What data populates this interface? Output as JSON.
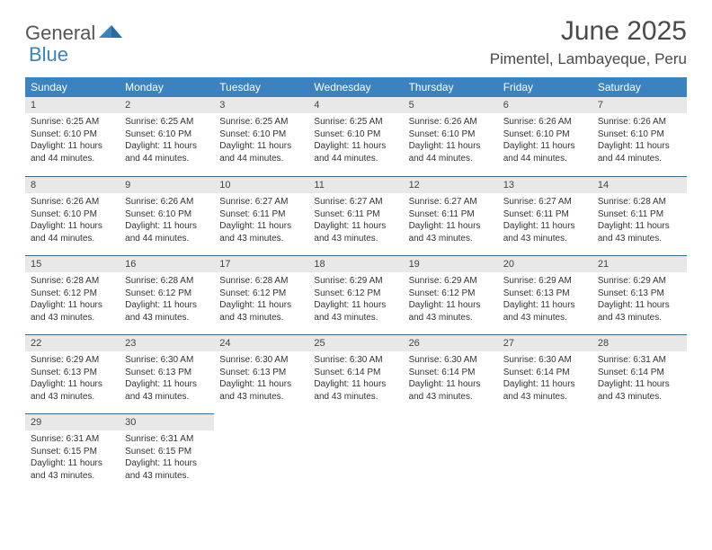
{
  "brand": {
    "name_a": "General",
    "name_b": "Blue"
  },
  "colors": {
    "header_bg": "#3b83c0",
    "header_text": "#ffffff",
    "daynum_bg": "#e8e8e8",
    "body_text": "#333333",
    "divider": "#3b6a9a",
    "page_bg": "#ffffff"
  },
  "title": "June 2025",
  "location": "Pimentel, Lambayeque, Peru",
  "weekdays": [
    "Sunday",
    "Monday",
    "Tuesday",
    "Wednesday",
    "Thursday",
    "Friday",
    "Saturday"
  ],
  "font": {
    "title_size": 30,
    "location_size": 17,
    "header_size": 12,
    "daynum_size": 11,
    "body_size": 10
  },
  "weeks": [
    [
      {
        "n": "1",
        "sr": "Sunrise: 6:25 AM",
        "ss": "Sunset: 6:10 PM",
        "d1": "Daylight: 11 hours",
        "d2": "and 44 minutes."
      },
      {
        "n": "2",
        "sr": "Sunrise: 6:25 AM",
        "ss": "Sunset: 6:10 PM",
        "d1": "Daylight: 11 hours",
        "d2": "and 44 minutes."
      },
      {
        "n": "3",
        "sr": "Sunrise: 6:25 AM",
        "ss": "Sunset: 6:10 PM",
        "d1": "Daylight: 11 hours",
        "d2": "and 44 minutes."
      },
      {
        "n": "4",
        "sr": "Sunrise: 6:25 AM",
        "ss": "Sunset: 6:10 PM",
        "d1": "Daylight: 11 hours",
        "d2": "and 44 minutes."
      },
      {
        "n": "5",
        "sr": "Sunrise: 6:26 AM",
        "ss": "Sunset: 6:10 PM",
        "d1": "Daylight: 11 hours",
        "d2": "and 44 minutes."
      },
      {
        "n": "6",
        "sr": "Sunrise: 6:26 AM",
        "ss": "Sunset: 6:10 PM",
        "d1": "Daylight: 11 hours",
        "d2": "and 44 minutes."
      },
      {
        "n": "7",
        "sr": "Sunrise: 6:26 AM",
        "ss": "Sunset: 6:10 PM",
        "d1": "Daylight: 11 hours",
        "d2": "and 44 minutes."
      }
    ],
    [
      {
        "n": "8",
        "sr": "Sunrise: 6:26 AM",
        "ss": "Sunset: 6:10 PM",
        "d1": "Daylight: 11 hours",
        "d2": "and 44 minutes."
      },
      {
        "n": "9",
        "sr": "Sunrise: 6:26 AM",
        "ss": "Sunset: 6:10 PM",
        "d1": "Daylight: 11 hours",
        "d2": "and 44 minutes."
      },
      {
        "n": "10",
        "sr": "Sunrise: 6:27 AM",
        "ss": "Sunset: 6:11 PM",
        "d1": "Daylight: 11 hours",
        "d2": "and 43 minutes."
      },
      {
        "n": "11",
        "sr": "Sunrise: 6:27 AM",
        "ss": "Sunset: 6:11 PM",
        "d1": "Daylight: 11 hours",
        "d2": "and 43 minutes."
      },
      {
        "n": "12",
        "sr": "Sunrise: 6:27 AM",
        "ss": "Sunset: 6:11 PM",
        "d1": "Daylight: 11 hours",
        "d2": "and 43 minutes."
      },
      {
        "n": "13",
        "sr": "Sunrise: 6:27 AM",
        "ss": "Sunset: 6:11 PM",
        "d1": "Daylight: 11 hours",
        "d2": "and 43 minutes."
      },
      {
        "n": "14",
        "sr": "Sunrise: 6:28 AM",
        "ss": "Sunset: 6:11 PM",
        "d1": "Daylight: 11 hours",
        "d2": "and 43 minutes."
      }
    ],
    [
      {
        "n": "15",
        "sr": "Sunrise: 6:28 AM",
        "ss": "Sunset: 6:12 PM",
        "d1": "Daylight: 11 hours",
        "d2": "and 43 minutes."
      },
      {
        "n": "16",
        "sr": "Sunrise: 6:28 AM",
        "ss": "Sunset: 6:12 PM",
        "d1": "Daylight: 11 hours",
        "d2": "and 43 minutes."
      },
      {
        "n": "17",
        "sr": "Sunrise: 6:28 AM",
        "ss": "Sunset: 6:12 PM",
        "d1": "Daylight: 11 hours",
        "d2": "and 43 minutes."
      },
      {
        "n": "18",
        "sr": "Sunrise: 6:29 AM",
        "ss": "Sunset: 6:12 PM",
        "d1": "Daylight: 11 hours",
        "d2": "and 43 minutes."
      },
      {
        "n": "19",
        "sr": "Sunrise: 6:29 AM",
        "ss": "Sunset: 6:12 PM",
        "d1": "Daylight: 11 hours",
        "d2": "and 43 minutes."
      },
      {
        "n": "20",
        "sr": "Sunrise: 6:29 AM",
        "ss": "Sunset: 6:13 PM",
        "d1": "Daylight: 11 hours",
        "d2": "and 43 minutes."
      },
      {
        "n": "21",
        "sr": "Sunrise: 6:29 AM",
        "ss": "Sunset: 6:13 PM",
        "d1": "Daylight: 11 hours",
        "d2": "and 43 minutes."
      }
    ],
    [
      {
        "n": "22",
        "sr": "Sunrise: 6:29 AM",
        "ss": "Sunset: 6:13 PM",
        "d1": "Daylight: 11 hours",
        "d2": "and 43 minutes."
      },
      {
        "n": "23",
        "sr": "Sunrise: 6:30 AM",
        "ss": "Sunset: 6:13 PM",
        "d1": "Daylight: 11 hours",
        "d2": "and 43 minutes."
      },
      {
        "n": "24",
        "sr": "Sunrise: 6:30 AM",
        "ss": "Sunset: 6:13 PM",
        "d1": "Daylight: 11 hours",
        "d2": "and 43 minutes."
      },
      {
        "n": "25",
        "sr": "Sunrise: 6:30 AM",
        "ss": "Sunset: 6:14 PM",
        "d1": "Daylight: 11 hours",
        "d2": "and 43 minutes."
      },
      {
        "n": "26",
        "sr": "Sunrise: 6:30 AM",
        "ss": "Sunset: 6:14 PM",
        "d1": "Daylight: 11 hours",
        "d2": "and 43 minutes."
      },
      {
        "n": "27",
        "sr": "Sunrise: 6:30 AM",
        "ss": "Sunset: 6:14 PM",
        "d1": "Daylight: 11 hours",
        "d2": "and 43 minutes."
      },
      {
        "n": "28",
        "sr": "Sunrise: 6:31 AM",
        "ss": "Sunset: 6:14 PM",
        "d1": "Daylight: 11 hours",
        "d2": "and 43 minutes."
      }
    ],
    [
      {
        "n": "29",
        "sr": "Sunrise: 6:31 AM",
        "ss": "Sunset: 6:15 PM",
        "d1": "Daylight: 11 hours",
        "d2": "and 43 minutes."
      },
      {
        "n": "30",
        "sr": "Sunrise: 6:31 AM",
        "ss": "Sunset: 6:15 PM",
        "d1": "Daylight: 11 hours",
        "d2": "and 43 minutes."
      },
      null,
      null,
      null,
      null,
      null
    ]
  ]
}
